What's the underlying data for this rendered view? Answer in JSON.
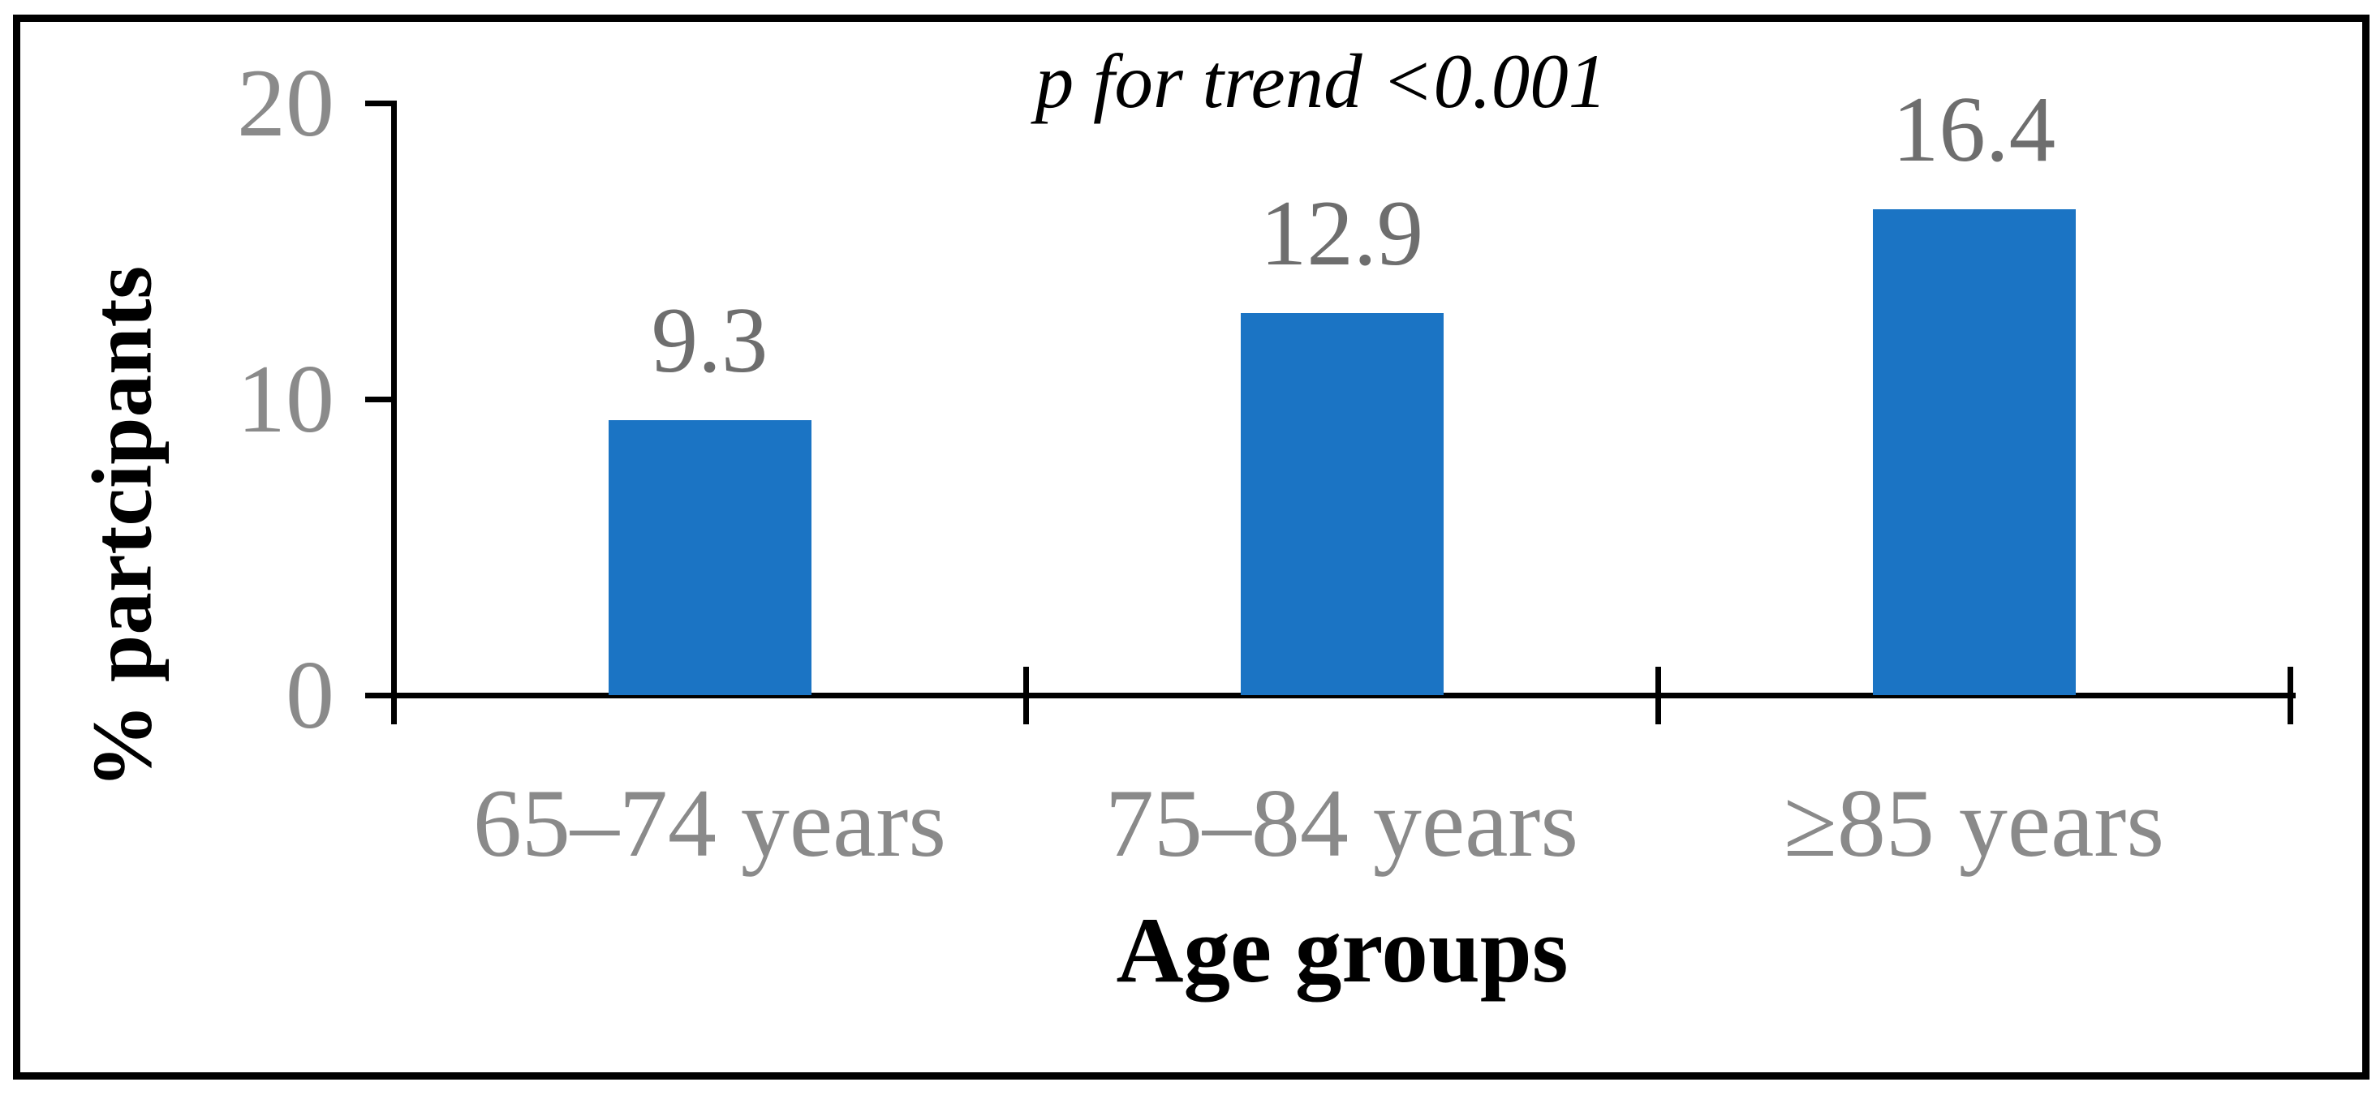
{
  "chart_data": {
    "type": "bar",
    "annotation": "p for trend <0.001",
    "categories": [
      "65–74 years",
      "75–84 years",
      "≥85 years"
    ],
    "values": [
      9.3,
      12.9,
      16.4
    ],
    "value_labels": [
      "9.3",
      "12.9",
      "16.4"
    ],
    "xlabel": "Age groups",
    "ylabel": "% partcipants",
    "ylim": [
      0,
      20
    ],
    "yticks": [
      0,
      10,
      20
    ],
    "ytick_labels": [
      "0",
      "10",
      "20"
    ],
    "grid": false,
    "legend_position": "none",
    "colors": {
      "bar": "#1B74C4",
      "axis": "#000000",
      "tick_label_gray": "#8A8A8A",
      "value_label_gray": "#6E6E6E",
      "text_black": "#000000"
    }
  }
}
